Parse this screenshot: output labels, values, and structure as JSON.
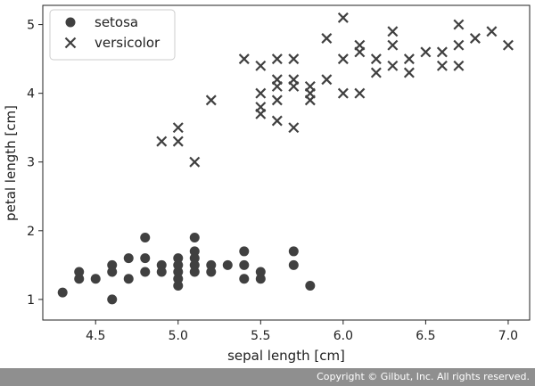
{
  "chart_data": {
    "type": "scatter",
    "xlabel": "sepal length [cm]",
    "ylabel": "petal length [cm]",
    "xlim": [
      4.18,
      7.13
    ],
    "ylim": [
      0.7,
      5.28
    ],
    "xticks": [
      "4.5",
      "5.0",
      "5.5",
      "6.0",
      "6.5",
      "7.0"
    ],
    "yticks": [
      "1",
      "2",
      "3",
      "4",
      "5"
    ],
    "legend_position": "top-left",
    "grid": false,
    "series": [
      {
        "name": "setosa",
        "marker": "circle",
        "color": "#404040",
        "points": [
          [
            4.3,
            1.1
          ],
          [
            4.4,
            1.4
          ],
          [
            4.4,
            1.3
          ],
          [
            4.5,
            1.3
          ],
          [
            4.6,
            1.5
          ],
          [
            4.6,
            1.4
          ],
          [
            4.6,
            1.0
          ],
          [
            4.7,
            1.6
          ],
          [
            4.7,
            1.3
          ],
          [
            4.8,
            1.9
          ],
          [
            4.8,
            1.6
          ],
          [
            4.8,
            1.4
          ],
          [
            4.9,
            1.5
          ],
          [
            4.9,
            1.4
          ],
          [
            5.0,
            1.6
          ],
          [
            5.0,
            1.5
          ],
          [
            5.0,
            1.4
          ],
          [
            5.0,
            1.3
          ],
          [
            5.0,
            1.2
          ],
          [
            5.1,
            1.9
          ],
          [
            5.1,
            1.7
          ],
          [
            5.1,
            1.6
          ],
          [
            5.1,
            1.5
          ],
          [
            5.1,
            1.4
          ],
          [
            5.2,
            1.5
          ],
          [
            5.2,
            1.4
          ],
          [
            5.3,
            1.5
          ],
          [
            5.4,
            1.7
          ],
          [
            5.4,
            1.5
          ],
          [
            5.4,
            1.3
          ],
          [
            5.5,
            1.4
          ],
          [
            5.5,
            1.3
          ],
          [
            5.7,
            1.7
          ],
          [
            5.7,
            1.5
          ],
          [
            5.8,
            1.2
          ]
        ]
      },
      {
        "name": "versicolor",
        "marker": "x",
        "color": "#404040",
        "points": [
          [
            4.9,
            3.3
          ],
          [
            5.0,
            3.5
          ],
          [
            5.0,
            3.3
          ],
          [
            5.1,
            3.0
          ],
          [
            5.2,
            3.9
          ],
          [
            5.4,
            4.5
          ],
          [
            5.5,
            4.4
          ],
          [
            5.5,
            4.0
          ],
          [
            5.5,
            3.8
          ],
          [
            5.5,
            3.7
          ],
          [
            5.6,
            4.5
          ],
          [
            5.6,
            4.2
          ],
          [
            5.6,
            4.1
          ],
          [
            5.6,
            3.9
          ],
          [
            5.6,
            3.6
          ],
          [
            5.7,
            4.5
          ],
          [
            5.7,
            4.2
          ],
          [
            5.7,
            4.1
          ],
          [
            5.7,
            3.5
          ],
          [
            5.8,
            4.1
          ],
          [
            5.8,
            4.0
          ],
          [
            5.8,
            3.9
          ],
          [
            5.9,
            4.8
          ],
          [
            5.9,
            4.2
          ],
          [
            6.0,
            5.1
          ],
          [
            6.0,
            4.5
          ],
          [
            6.0,
            4.0
          ],
          [
            6.1,
            4.7
          ],
          [
            6.1,
            4.6
          ],
          [
            6.1,
            4.0
          ],
          [
            6.2,
            4.5
          ],
          [
            6.2,
            4.3
          ],
          [
            6.3,
            4.9
          ],
          [
            6.3,
            4.7
          ],
          [
            6.3,
            4.4
          ],
          [
            6.4,
            4.5
          ],
          [
            6.4,
            4.3
          ],
          [
            6.5,
            4.6
          ],
          [
            6.6,
            4.6
          ],
          [
            6.6,
            4.4
          ],
          [
            6.7,
            5.0
          ],
          [
            6.7,
            4.7
          ],
          [
            6.7,
            4.4
          ],
          [
            6.8,
            4.8
          ],
          [
            6.9,
            4.9
          ],
          [
            7.0,
            4.7
          ]
        ]
      }
    ]
  },
  "footer": {
    "copyright": "Copyright © Gilbut, Inc. All rights reserved."
  }
}
